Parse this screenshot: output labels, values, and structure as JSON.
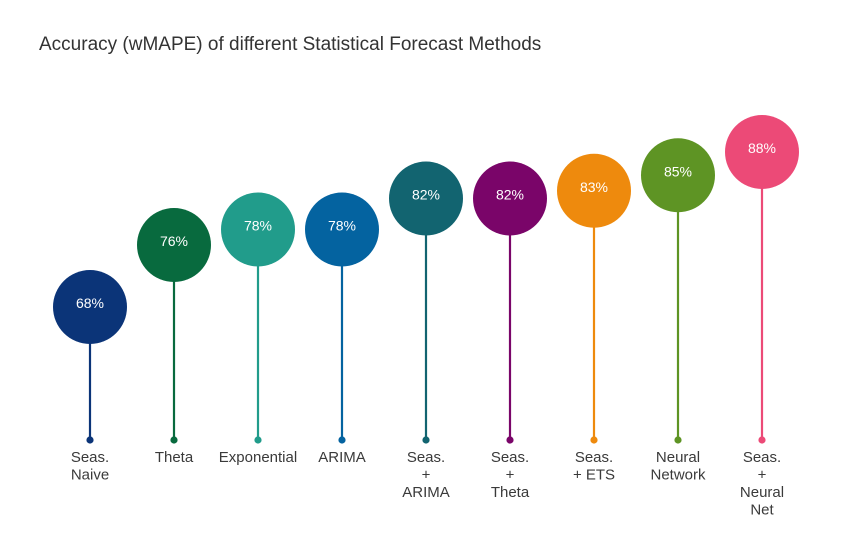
{
  "chart_data": {
    "type": "lollipop",
    "title": "Accuracy (wMAPE) of different Statistical Forecast Methods",
    "xlabel": "",
    "ylabel": "",
    "ylim": [
      55,
      95
    ],
    "grid": false,
    "categories": [
      [
        "Seas.",
        "Naive"
      ],
      [
        "Theta"
      ],
      [
        "Exponential"
      ],
      [
        "ARIMA"
      ],
      [
        "Seas.",
        "+",
        "ARIMA"
      ],
      [
        "Seas.",
        "+",
        "Theta"
      ],
      [
        "Seas.",
        "+ ETS"
      ],
      [
        "Neural",
        "Network"
      ],
      [
        "Seas.",
        "+",
        "Neural",
        "Net"
      ]
    ],
    "values": [
      68,
      76,
      78,
      78,
      82,
      82,
      83,
      85,
      88
    ],
    "value_labels": [
      "68%",
      "76%",
      "78%",
      "78%",
      "82%",
      "82%",
      "83%",
      "85%",
      "88%"
    ],
    "colors": [
      "#0b3478",
      "#086a3e",
      "#219c8b",
      "#0463a0",
      "#126470",
      "#7a0569",
      "#ee8a0d",
      "#5e9424",
      "#ec4a77"
    ]
  }
}
